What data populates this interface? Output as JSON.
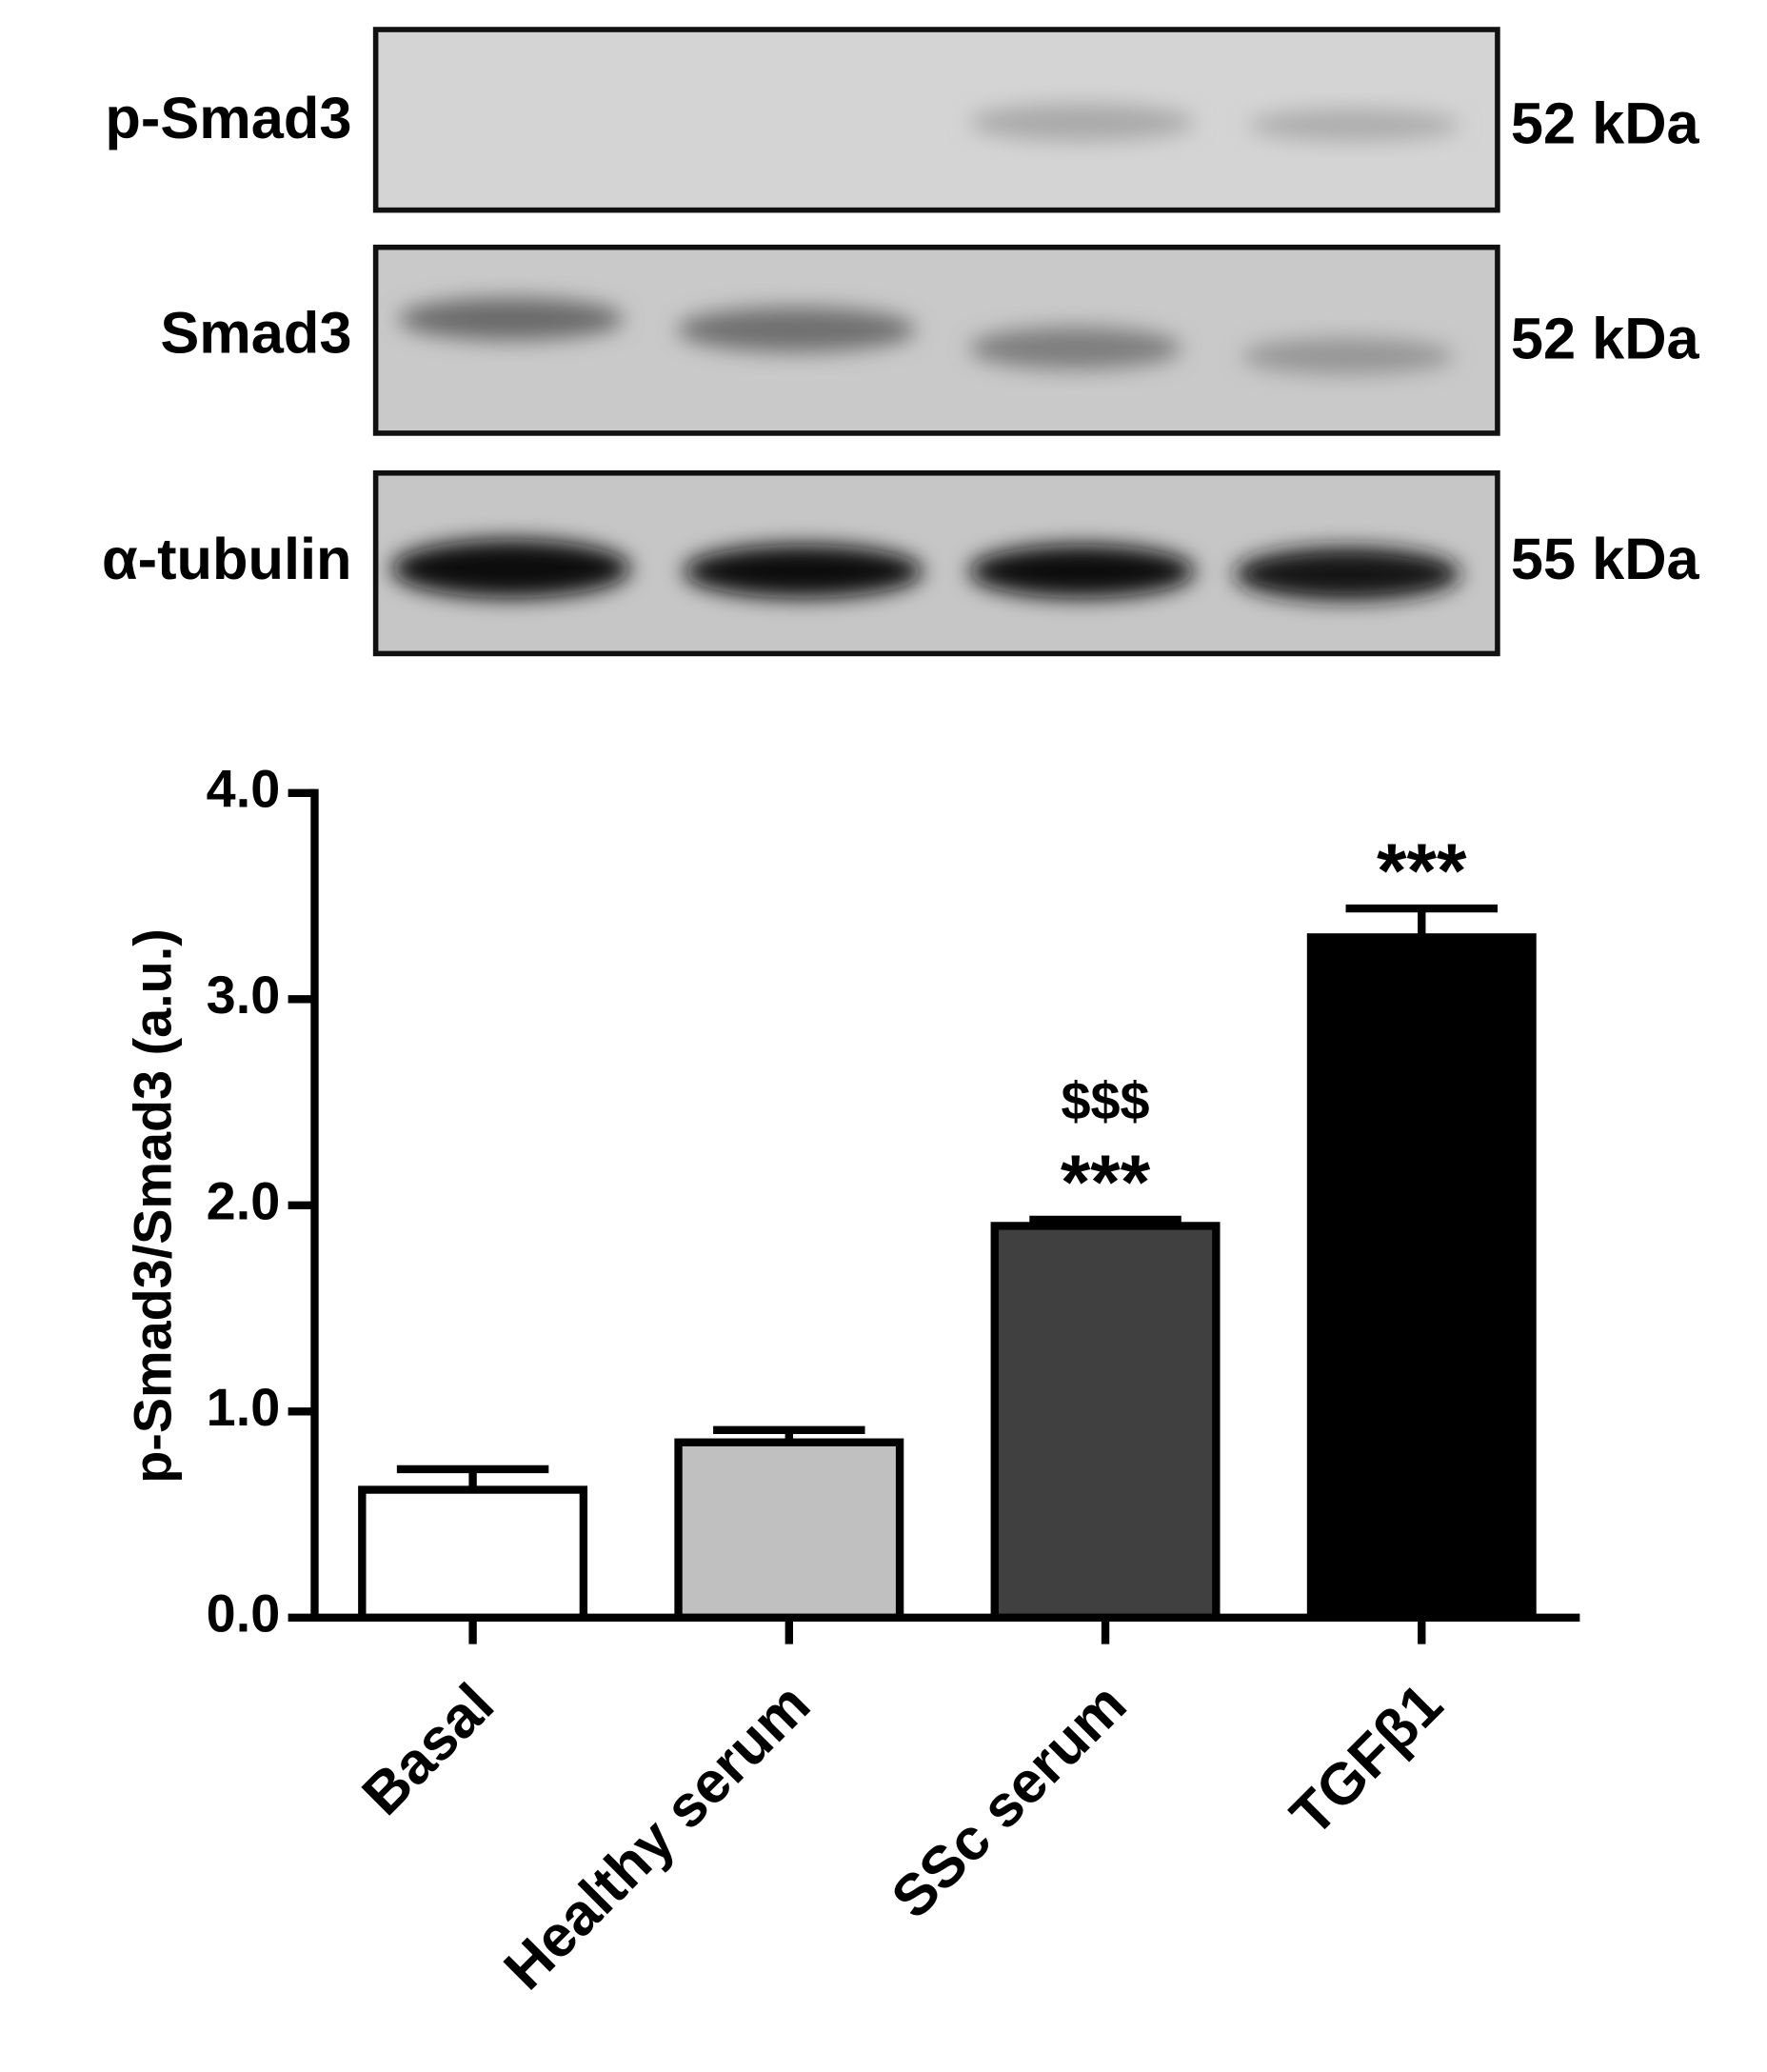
{
  "blot": {
    "rows": [
      {
        "label": "p-Smad3",
        "size": "52 kDa"
      },
      {
        "label": "Smad3",
        "size": "52 kDa"
      },
      {
        "label": "α-tubulin",
        "size": "55 kDa"
      }
    ]
  },
  "chart_data": {
    "type": "bar",
    "y_label": "p-Smad3/Smad3 (a.u.)",
    "categories": [
      "Basal",
      "Healthy serum",
      "SSc serum",
      "TGFβ1"
    ],
    "values": [
      0.62,
      0.85,
      1.9,
      3.3
    ],
    "errors": [
      0.1,
      0.06,
      0.03,
      0.14
    ],
    "colors": [
      "#ffffff",
      "#c0c0c0",
      "#404040",
      "#000000"
    ],
    "annotations": [
      null,
      null,
      [
        "$$$",
        "***"
      ],
      [
        "***"
      ]
    ],
    "ylim": [
      0,
      4
    ],
    "yticks": [
      {
        "value": 0,
        "label": "0.0"
      },
      {
        "value": 1,
        "label": "1.0"
      },
      {
        "value": 2,
        "label": "2.0"
      },
      {
        "value": 3,
        "label": "3.0"
      },
      {
        "value": 4,
        "label": "4.0"
      }
    ]
  }
}
